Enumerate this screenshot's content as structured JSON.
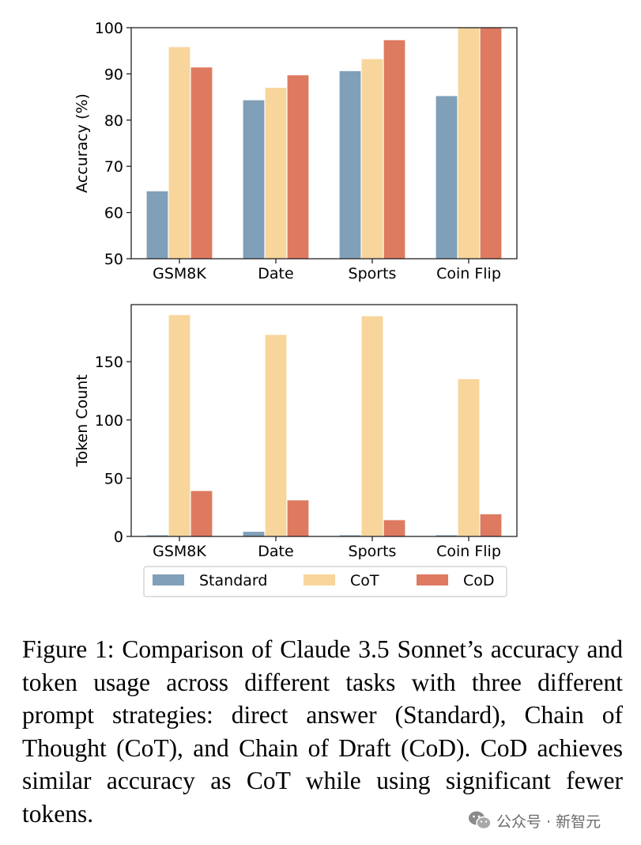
{
  "chart_data": [
    {
      "type": "bar",
      "categories": [
        "GSM8K",
        "Date",
        "Sports",
        "Coin Flip"
      ],
      "series": [
        {
          "name": "Standard",
          "values": [
            64.6,
            84.3,
            90.6,
            85.2
          ]
        },
        {
          "name": "CoT",
          "values": [
            95.8,
            87.0,
            93.2,
            100.0
          ]
        },
        {
          "name": "CoD",
          "values": [
            91.4,
            89.7,
            97.3,
            100.0
          ]
        }
      ],
      "ylabel": "Accuracy (%)",
      "ylim": [
        50,
        100
      ],
      "yticks": [
        "50",
        "60",
        "70",
        "80",
        "90",
        "100"
      ],
      "grid": false
    },
    {
      "type": "bar",
      "categories": [
        "GSM8K",
        "Date",
        "Sports",
        "Coin Flip"
      ],
      "series": [
        {
          "name": "Standard",
          "values": [
            1,
            4,
            1,
            1
          ]
        },
        {
          "name": "CoT",
          "values": [
            190,
            173,
            189,
            135
          ]
        },
        {
          "name": "CoD",
          "values": [
            39,
            31,
            14,
            19
          ]
        }
      ],
      "ylabel": "Token Count",
      "ylim": [
        0,
        199
      ],
      "yticks": [
        "0",
        "50",
        "100",
        "150"
      ],
      "grid": false
    }
  ],
  "legend": {
    "placement": "bottom",
    "entries": [
      "Standard",
      "CoT",
      "CoD"
    ]
  },
  "colors": {
    "standard": "#809FB8",
    "cot": "#F7D59B",
    "cod": "#DE7A60"
  },
  "caption": "Figure 1: Comparison of Claude 3.5 Sonnet’s accuracy and token usage across different tasks with three different prompt strategies: direct answer (Standard), Chain of Thought (CoT), and Chain of Draft (CoD). CoD achieves similar accuracy as CoT while using significant fewer tokens.",
  "watermark": {
    "text": "公众号 · 新智元",
    "icon": "wechat-icon"
  }
}
